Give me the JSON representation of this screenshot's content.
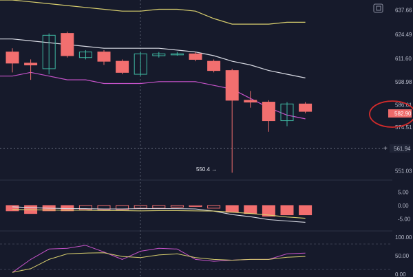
{
  "chart_data": {
    "type": "candlestick",
    "price_axis": {
      "ticks": [
        "637.66",
        "624.49",
        "611.60",
        "598.98",
        "586.61",
        "574.51",
        "551.03"
      ],
      "last_price": "582.90",
      "crosshair_price": "561.94",
      "range": [
        546,
        643
      ]
    },
    "annotation_low": "550.4 →",
    "candles": [
      {
        "o": 615,
        "h": 617,
        "l": 604,
        "c": 609
      },
      {
        "o": 609,
        "h": 611,
        "l": 600,
        "c": 608
      },
      {
        "o": 606,
        "h": 625,
        "l": 603,
        "c": 624
      },
      {
        "o": 625,
        "h": 626,
        "l": 612,
        "c": 613
      },
      {
        "o": 612,
        "h": 616,
        "l": 611,
        "c": 615
      },
      {
        "o": 615,
        "h": 616,
        "l": 608,
        "c": 610
      },
      {
        "o": 610,
        "h": 611,
        "l": 603,
        "c": 604
      },
      {
        "o": 603,
        "h": 615,
        "l": 602,
        "c": 614
      },
      {
        "o": 613,
        "h": 615,
        "l": 612,
        "c": 614
      },
      {
        "o": 614,
        "h": 615,
        "l": 613,
        "c": 614
      },
      {
        "o": 614,
        "h": 615,
        "l": 610,
        "c": 611
      },
      {
        "o": 610,
        "h": 611,
        "l": 604,
        "c": 605
      },
      {
        "o": 605,
        "h": 606,
        "l": 550,
        "c": 589
      },
      {
        "o": 589,
        "h": 594,
        "l": 585,
        "c": 588
      },
      {
        "o": 588,
        "h": 589,
        "l": 572,
        "c": 578
      },
      {
        "o": 578,
        "h": 588,
        "l": 575,
        "c": 587
      },
      {
        "o": 587,
        "h": 588,
        "l": 582,
        "c": 583
      }
    ],
    "bollinger": {
      "upper": [
        643,
        642,
        641,
        640,
        639,
        638,
        637,
        637,
        638,
        638,
        637,
        633,
        630,
        630,
        630,
        631,
        631
      ],
      "middle": [
        622,
        621,
        620,
        619,
        618,
        617,
        617,
        617,
        617,
        616,
        615,
        613,
        610,
        608,
        605,
        603,
        601
      ],
      "lower": [
        602,
        604,
        602,
        600,
        600,
        598,
        598,
        598,
        599,
        599,
        599,
        597,
        595,
        590,
        585,
        581,
        579
      ]
    },
    "macd": {
      "ticks": [
        "5.00",
        "0.00",
        "-5.00"
      ],
      "range": [
        -8,
        8
      ],
      "histogram": [
        -2,
        -3,
        -2,
        -2,
        -1.5,
        -1.5,
        -1.5,
        -1,
        -1,
        -0.6,
        -0.4,
        -1,
        -2.5,
        -3,
        -4,
        -3.5,
        -3.5
      ],
      "macd_line": [
        -0.5,
        -0.8,
        -1,
        -1.2,
        -1.2,
        -1.3,
        -1.3,
        -1.2,
        -1.2,
        -1.2,
        -1.3,
        -2.1,
        -3.4,
        -4.2,
        -5.3,
        -5.8,
        -6.3
      ],
      "signal_line": [
        -1.5,
        -1.6,
        -1.7,
        -1.8,
        -1.8,
        -1.9,
        -1.9,
        -2,
        -1.9,
        -1.9,
        -2,
        -2.1,
        -2.5,
        -3,
        -3.6,
        -4.3,
        -4.8
      ]
    },
    "stoch": {
      "ticks": [
        "100.00",
        "50.00",
        "0.00"
      ],
      "range": [
        0,
        100
      ],
      "k": [
        5,
        40,
        68,
        70,
        78,
        60,
        40,
        62,
        70,
        68,
        40,
        35,
        38,
        40,
        40,
        55,
        57
      ],
      "d": [
        5,
        15,
        40,
        55,
        57,
        58,
        48,
        45,
        52,
        55,
        45,
        40,
        38,
        40,
        40,
        46,
        48
      ]
    }
  }
}
